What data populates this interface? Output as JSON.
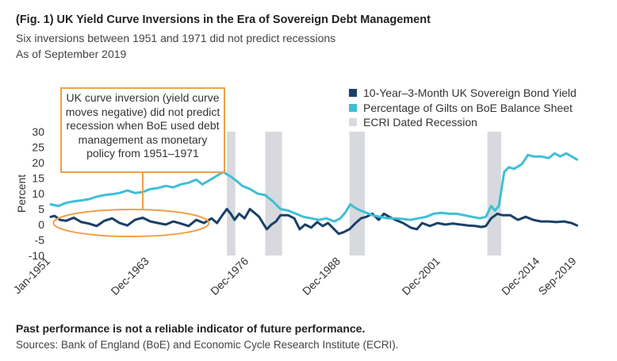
{
  "header": {
    "title": "(Fig. 1) UK Yield Curve Inversions in the Era of Sovereign Debt Management",
    "subtitle": "Six inversions between 1951 and 1971 did not predict recessions",
    "as_of": "As of September 2019"
  },
  "footer": {
    "disclaimer": "Past performance is not a reliable indicator of future performance.",
    "sources": "Sources: Bank of England (BoE) and Economic Cycle Research Institute (ECRI)."
  },
  "colors": {
    "yield": "#1a4068",
    "gilts": "#3fbfd6",
    "recession": "#d7d9de",
    "callout": "#f0a048"
  },
  "chart_data": {
    "type": "line",
    "ylabel": "Percent",
    "xlabel": "",
    "ylim": [
      -10,
      30
    ],
    "yticks": [
      -10,
      -5,
      0,
      5,
      10,
      15,
      20,
      25,
      30
    ],
    "xlim": [
      1951,
      2019.75
    ],
    "xticks": [
      {
        "label": "Jan-1951",
        "x": 1951.0
      },
      {
        "label": "Dec-1963",
        "x": 1963.9
      },
      {
        "label": "Dec-1976",
        "x": 1976.9
      },
      {
        "label": "Dec-1988",
        "x": 1988.9
      },
      {
        "label": "Dec-2001",
        "x": 2001.9
      },
      {
        "label": "Dec-2014",
        "x": 2014.9
      },
      {
        "label": "Sep-2019",
        "x": 2019.7
      }
    ],
    "legend": [
      {
        "name": "10-Year–3-Month UK Sovereign Bond Yield",
        "color": "#1a4068"
      },
      {
        "name": "Percentage of Gilts on BoE Balance Sheet",
        "color": "#3fbfd6"
      },
      {
        "name": "ECRI Dated Recession",
        "color": "#d7d9de"
      }
    ],
    "recessions": [
      {
        "start": 1974.0,
        "end": 1975.1
      },
      {
        "start": 1979.0,
        "end": 1981.2
      },
      {
        "start": 1990.0,
        "end": 1992.0
      },
      {
        "start": 2008.0,
        "end": 2009.8
      }
    ],
    "series": [
      {
        "name": "10-Year–3-Month UK Sovereign Bond Yield",
        "color": "#1a4068",
        "points": [
          [
            1951.0,
            2.5
          ],
          [
            1951.5,
            2.8
          ],
          [
            1952.2,
            1.5
          ],
          [
            1953.0,
            1.2
          ],
          [
            1954.0,
            2.2
          ],
          [
            1955.0,
            0.8
          ],
          [
            1956.0,
            0.3
          ],
          [
            1957.0,
            -0.5
          ],
          [
            1958.0,
            1.2
          ],
          [
            1959.0,
            2.0
          ],
          [
            1960.0,
            0.5
          ],
          [
            1961.0,
            -0.3
          ],
          [
            1962.0,
            1.5
          ],
          [
            1963.0,
            2.2
          ],
          [
            1964.0,
            1.0
          ],
          [
            1965.0,
            0.5
          ],
          [
            1966.0,
            0.0
          ],
          [
            1967.0,
            1.0
          ],
          [
            1968.0,
            0.3
          ],
          [
            1969.0,
            -0.5
          ],
          [
            1970.0,
            1.5
          ],
          [
            1971.0,
            0.5
          ],
          [
            1972.0,
            2.0
          ],
          [
            1972.7,
            0.5
          ],
          [
            1973.4,
            3.0
          ],
          [
            1974.0,
            5.0
          ],
          [
            1974.5,
            3.5
          ],
          [
            1975.0,
            1.5
          ],
          [
            1975.6,
            3.5
          ],
          [
            1976.3,
            2.0
          ],
          [
            1977.0,
            5.0
          ],
          [
            1977.5,
            4.0
          ],
          [
            1978.2,
            2.5
          ],
          [
            1978.7,
            0.5
          ],
          [
            1979.2,
            -1.5
          ],
          [
            1979.8,
            0.0
          ],
          [
            1980.4,
            1.0
          ],
          [
            1981.0,
            3.0
          ],
          [
            1982.0,
            3.0
          ],
          [
            1982.8,
            2.0
          ],
          [
            1983.5,
            -1.5
          ],
          [
            1984.2,
            0.0
          ],
          [
            1985.0,
            -1.0
          ],
          [
            1985.8,
            0.8
          ],
          [
            1986.5,
            -0.5
          ],
          [
            1987.2,
            0.5
          ],
          [
            1988.0,
            -1.5
          ],
          [
            1988.6,
            -3.0
          ],
          [
            1989.2,
            -2.5
          ],
          [
            1990.0,
            -1.5
          ],
          [
            1990.8,
            0.5
          ],
          [
            1991.5,
            2.0
          ],
          [
            1992.2,
            2.5
          ],
          [
            1993.0,
            3.5
          ],
          [
            1993.8,
            1.5
          ],
          [
            1994.5,
            3.5
          ],
          [
            1995.2,
            2.5
          ],
          [
            1996.0,
            1.5
          ],
          [
            1997.0,
            0.5
          ],
          [
            1998.0,
            -1.0
          ],
          [
            1998.8,
            -1.5
          ],
          [
            1999.5,
            0.5
          ],
          [
            2000.5,
            -0.5
          ],
          [
            2001.5,
            0.5
          ],
          [
            2002.5,
            0.0
          ],
          [
            2003.5,
            0.3
          ],
          [
            2004.5,
            0.0
          ],
          [
            2005.5,
            -0.3
          ],
          [
            2006.5,
            -0.5
          ],
          [
            2007.2,
            -0.8
          ],
          [
            2007.8,
            -0.5
          ],
          [
            2008.5,
            2.0
          ],
          [
            2009.3,
            3.5
          ],
          [
            2010.0,
            3.0
          ],
          [
            2011.0,
            3.0
          ],
          [
            2012.0,
            1.5
          ],
          [
            2013.0,
            2.5
          ],
          [
            2014.0,
            1.5
          ],
          [
            2015.0,
            1.0
          ],
          [
            2016.0,
            1.0
          ],
          [
            2017.0,
            0.8
          ],
          [
            2018.0,
            1.0
          ],
          [
            2019.0,
            0.5
          ],
          [
            2019.7,
            -0.3
          ]
        ]
      },
      {
        "name": "Percentage of Gilts on BoE Balance Sheet",
        "color": "#3fbfd6",
        "points": [
          [
            1951.0,
            6.5
          ],
          [
            1952.0,
            6.0
          ],
          [
            1953.0,
            7.0
          ],
          [
            1954.0,
            7.5
          ],
          [
            1955.0,
            7.8
          ],
          [
            1956.0,
            8.2
          ],
          [
            1957.0,
            9.0
          ],
          [
            1958.0,
            9.5
          ],
          [
            1959.0,
            9.8
          ],
          [
            1960.0,
            10.2
          ],
          [
            1961.0,
            11.0
          ],
          [
            1962.0,
            10.2
          ],
          [
            1963.0,
            10.5
          ],
          [
            1964.0,
            11.5
          ],
          [
            1965.0,
            11.8
          ],
          [
            1966.0,
            12.5
          ],
          [
            1967.0,
            12.0
          ],
          [
            1968.0,
            13.0
          ],
          [
            1969.0,
            13.5
          ],
          [
            1970.0,
            14.5
          ],
          [
            1970.8,
            13.0
          ],
          [
            1971.5,
            14.0
          ],
          [
            1972.5,
            15.5
          ],
          [
            1973.5,
            17.0
          ],
          [
            1974.5,
            15.5
          ],
          [
            1975.3,
            14.0
          ],
          [
            1976.0,
            12.5
          ],
          [
            1977.0,
            11.5
          ],
          [
            1978.0,
            10.0
          ],
          [
            1979.0,
            9.5
          ],
          [
            1980.0,
            7.5
          ],
          [
            1981.0,
            5.0
          ],
          [
            1982.0,
            4.5
          ],
          [
            1983.0,
            3.5
          ],
          [
            1984.0,
            2.5
          ],
          [
            1985.0,
            2.0
          ],
          [
            1986.0,
            1.5
          ],
          [
            1987.0,
            2.0
          ],
          [
            1988.0,
            1.0
          ],
          [
            1988.8,
            2.0
          ],
          [
            1989.5,
            4.0
          ],
          [
            1990.1,
            6.5
          ],
          [
            1991.0,
            5.0
          ],
          [
            1992.0,
            4.0
          ],
          [
            1993.0,
            3.0
          ],
          [
            1994.0,
            2.5
          ],
          [
            1995.0,
            2.0
          ],
          [
            1996.0,
            2.0
          ],
          [
            1997.0,
            1.8
          ],
          [
            1998.0,
            1.5
          ],
          [
            1999.0,
            2.0
          ],
          [
            2000.0,
            2.5
          ],
          [
            2001.0,
            3.5
          ],
          [
            2002.0,
            3.8
          ],
          [
            2003.0,
            3.5
          ],
          [
            2004.0,
            3.5
          ],
          [
            2005.0,
            3.0
          ],
          [
            2006.0,
            2.5
          ],
          [
            2007.0,
            2.0
          ],
          [
            2007.8,
            2.5
          ],
          [
            2008.5,
            6.0
          ],
          [
            2009.0,
            4.5
          ],
          [
            2009.5,
            6.0
          ],
          [
            2010.2,
            17.0
          ],
          [
            2010.8,
            18.5
          ],
          [
            2011.5,
            18.0
          ],
          [
            2012.5,
            19.5
          ],
          [
            2013.3,
            22.5
          ],
          [
            2014.0,
            22.0
          ],
          [
            2015.0,
            22.0
          ],
          [
            2016.0,
            21.5
          ],
          [
            2016.8,
            23.0
          ],
          [
            2017.5,
            22.0
          ],
          [
            2018.3,
            23.0
          ],
          [
            2019.0,
            22.0
          ],
          [
            2019.7,
            21.0
          ]
        ]
      }
    ],
    "annotations": [
      "UK curve inversion (yield curve moves negative) did not predict recession when BoE used debt management as monetary policy from 1951–1971"
    ]
  }
}
